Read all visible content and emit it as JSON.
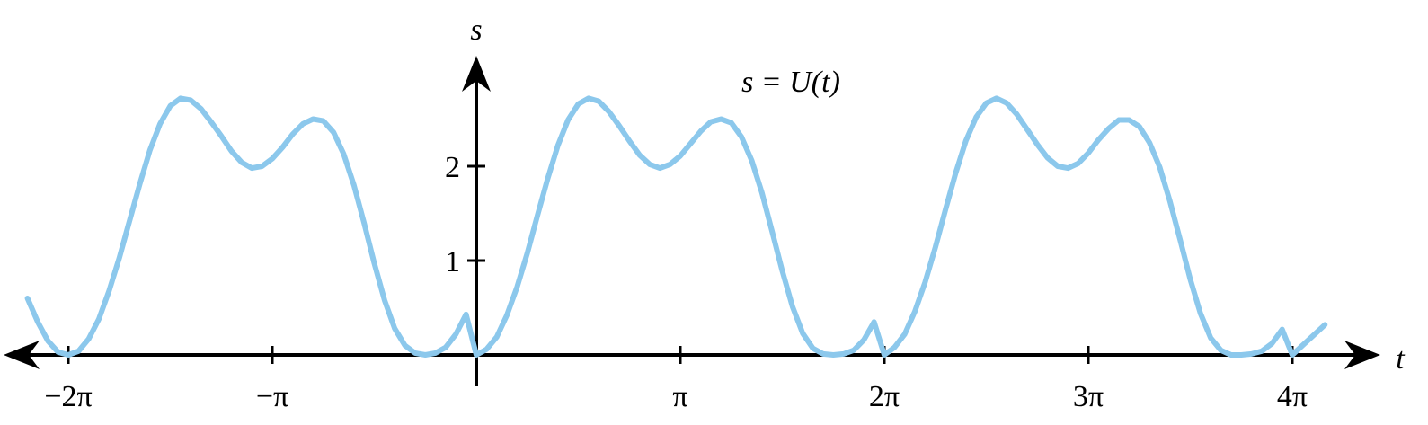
{
  "chart_data": {
    "type": "line",
    "title": "",
    "xlabel": "t",
    "ylabel": "s",
    "curve_label": "s = U(t)",
    "xlim": [
      -2.2,
      4.16
    ],
    "ylim": [
      0,
      3
    ],
    "x_ticks": [
      {
        "value": -2,
        "label": "−2π"
      },
      {
        "value": -1,
        "label": "−π"
      },
      {
        "value": 1,
        "label": "π"
      },
      {
        "value": 2,
        "label": "2π"
      },
      {
        "value": 3,
        "label": "3π"
      },
      {
        "value": 4,
        "label": "4π"
      }
    ],
    "y_ticks": [
      {
        "value": 1,
        "label": "1"
      },
      {
        "value": 2,
        "label": "2"
      }
    ],
    "x_unit": "π",
    "grid": false,
    "colors": {
      "curve": "#8cc8ec",
      "axes": "#000000"
    },
    "series": [
      {
        "x": [
          -2.2,
          -2.15,
          -2.1,
          -2.05,
          -2.0,
          -1.95,
          -1.9,
          -1.85,
          -1.8,
          -1.75,
          -1.7,
          -1.65,
          -1.6,
          -1.55,
          -1.5,
          -1.45,
          -1.4,
          -1.35,
          -1.3,
          -1.25,
          -1.2,
          -1.15,
          -1.1,
          -1.05,
          -1.0,
          -0.95,
          -0.9,
          -0.85,
          -0.8,
          -0.75,
          -0.7,
          -0.65,
          -0.6,
          -0.55,
          -0.5,
          -0.45,
          -0.4,
          -0.35,
          -0.3,
          -0.25,
          -0.2,
          -0.15,
          -0.1,
          -0.05,
          0.0,
          0.05,
          0.1,
          0.15,
          0.2,
          0.25,
          0.3,
          0.35,
          0.4,
          0.45,
          0.5,
          0.55,
          0.6,
          0.65,
          0.7,
          0.75,
          0.8,
          0.85,
          0.9,
          0.95,
          1.0,
          1.05,
          1.1,
          1.15,
          1.2,
          1.25,
          1.3,
          1.35,
          1.4,
          1.45,
          1.5,
          1.55,
          1.6,
          1.65,
          1.7,
          1.75,
          1.8,
          1.85,
          1.9,
          1.95,
          2.0,
          2.05,
          2.1,
          2.15,
          2.2,
          2.25,
          2.3,
          2.35,
          2.4,
          2.45,
          2.5,
          2.55,
          2.6,
          2.65,
          2.7,
          2.75,
          2.8,
          2.85,
          2.9,
          2.95,
          3.0,
          3.05,
          3.1,
          3.15,
          3.2,
          3.25,
          3.3,
          3.35,
          3.4,
          3.45,
          3.5,
          3.55,
          3.6,
          3.65,
          3.7,
          3.75,
          3.8,
          3.85,
          3.9,
          3.95,
          4.0,
          4.05,
          4.1,
          4.16
        ],
        "y": [
          0.6,
          0.35,
          0.15,
          0.03,
          0.0,
          0.04,
          0.17,
          0.38,
          0.68,
          1.03,
          1.42,
          1.81,
          2.17,
          2.45,
          2.64,
          2.72,
          2.7,
          2.61,
          2.47,
          2.32,
          2.16,
          2.04,
          1.98,
          2.0,
          2.08,
          2.2,
          2.34,
          2.45,
          2.5,
          2.48,
          2.36,
          2.13,
          1.8,
          1.4,
          0.97,
          0.58,
          0.28,
          0.1,
          0.02,
          0.0,
          0.02,
          0.08,
          0.22,
          0.43,
          0.0,
          0.06,
          0.19,
          0.42,
          0.72,
          1.08,
          1.48,
          1.87,
          2.22,
          2.49,
          2.66,
          2.72,
          2.69,
          2.58,
          2.43,
          2.27,
          2.12,
          2.02,
          1.98,
          2.02,
          2.11,
          2.24,
          2.37,
          2.47,
          2.5,
          2.46,
          2.31,
          2.06,
          1.72,
          1.31,
          0.89,
          0.51,
          0.23,
          0.07,
          0.01,
          0.0,
          0.01,
          0.05,
          0.16,
          0.35,
          0.0,
          0.08,
          0.22,
          0.46,
          0.77,
          1.14,
          1.54,
          1.93,
          2.27,
          2.52,
          2.67,
          2.72,
          2.67,
          2.55,
          2.39,
          2.23,
          2.09,
          2.0,
          1.98,
          2.03,
          2.14,
          2.28,
          2.4,
          2.49,
          2.49,
          2.42,
          2.25,
          1.99,
          1.63,
          1.22,
          0.8,
          0.44,
          0.18,
          0.05,
          0.0,
          0.0,
          0.01,
          0.04,
          0.12,
          0.27,
          0.0,
          0.1,
          0.2,
          0.32
        ]
      }
    ]
  }
}
